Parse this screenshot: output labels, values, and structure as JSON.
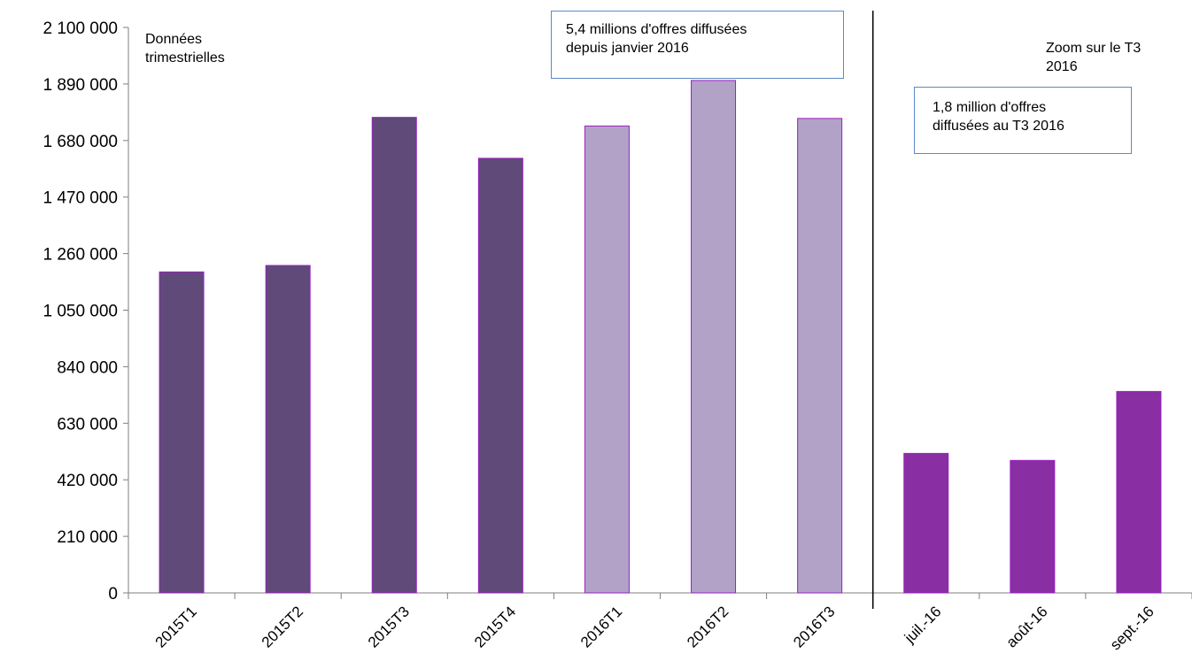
{
  "chart_data": {
    "type": "bar",
    "categories": [
      "2015T1",
      "2015T2",
      "2015T3",
      "2015T4",
      "2016T1",
      "2016T2",
      "2016T3",
      "juil.-16",
      "août-16",
      "sept.-16"
    ],
    "values": [
      1192000,
      1216000,
      1766000,
      1614000,
      1734000,
      1903000,
      1762000,
      518000,
      492000,
      748000
    ],
    "bar_colors": [
      "#5f4a7a",
      "#5f4a7a",
      "#5f4a7a",
      "#5f4a7a",
      "#b2a2c8",
      "#b2a2c8",
      "#b2a2c8",
      "#8a2ea4",
      "#8a2ea4",
      "#8a2ea4"
    ],
    "bar_border_color": "#9a1fbf",
    "ylim": [
      0,
      2100000
    ],
    "yticks": [
      0,
      210000,
      420000,
      630000,
      840000,
      1050000,
      1260000,
      1470000,
      1680000,
      1890000,
      2100000
    ],
    "ytick_labels": [
      "0",
      "210 000",
      "420 000",
      "630 000",
      "840 000",
      "1 050 000",
      "1 260 000",
      "1 470 000",
      "1 680 000",
      "1 890 000",
      "2 100 000"
    ],
    "divider_after_category": "2016T3",
    "grid": false,
    "xlabel": "",
    "ylabel": "",
    "annotations": {
      "left_label": [
        "Données",
        "trimestrielles"
      ],
      "right_label": [
        "Zoom sur le T3",
        "2016"
      ],
      "box_total": [
        "5,4 millions d'offres diffusées",
        "depuis janvier 2016"
      ],
      "box_quarter": [
        "1,8 million d'offres",
        "diffusées au T3 2016"
      ]
    }
  }
}
